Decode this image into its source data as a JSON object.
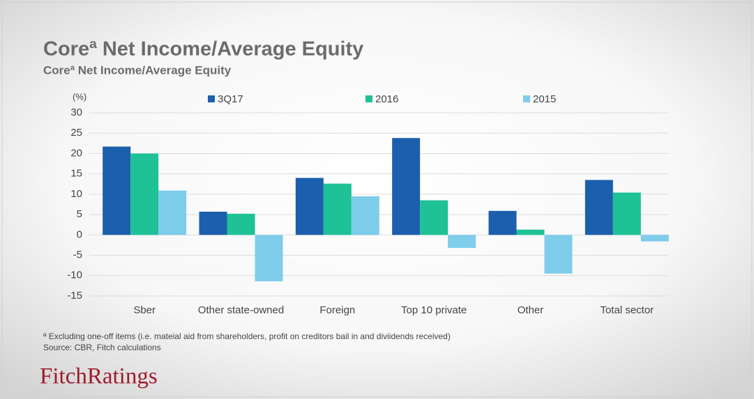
{
  "chart_data": {
    "type": "bar",
    "title": "Coreª Net Income/Average Equity",
    "subtitle": "Coreª Net Income/Average  Equity",
    "unit_label": "(%)",
    "categories": [
      "Sber",
      "Other state-owned",
      "Foreign",
      "Top 10 private",
      "Other",
      "Total sector"
    ],
    "series": [
      {
        "name": "3Q17",
        "color": "#1b5fad",
        "values": [
          21.7,
          5.7,
          14,
          23.8,
          5.9,
          13.5
        ]
      },
      {
        "name": "2016",
        "color": "#1fc196",
        "values": [
          20,
          5.2,
          12.6,
          8.5,
          1.3,
          10.4
        ]
      },
      {
        "name": "2015",
        "color": "#7ecdea",
        "values": [
          10.9,
          -11.4,
          9.5,
          -3.2,
          -9.5,
          -1.6
        ]
      }
    ],
    "ylim": [
      -15,
      30
    ],
    "yticks": [
      -15,
      -10,
      -5,
      0,
      5,
      10,
      15,
      20,
      25,
      30
    ],
    "grid": true,
    "legend": "top"
  },
  "footnote": "ª Excluding one-off items (i.e. mateial aid from shareholders,  profit  on creditors bail in and diviidends  received)",
  "source": "Source: CBR, Fitch calculations",
  "logo": "FitchRatings"
}
